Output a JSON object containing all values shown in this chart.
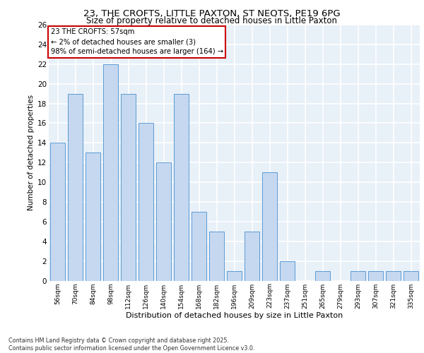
{
  "title_line1": "23, THE CROFTS, LITTLE PAXTON, ST NEOTS, PE19 6PG",
  "title_line2": "Size of property relative to detached houses in Little Paxton",
  "xlabel": "Distribution of detached houses by size in Little Paxton",
  "ylabel": "Number of detached properties",
  "categories": [
    "56sqm",
    "70sqm",
    "84sqm",
    "98sqm",
    "112sqm",
    "126sqm",
    "140sqm",
    "154sqm",
    "168sqm",
    "182sqm",
    "196sqm",
    "209sqm",
    "223sqm",
    "237sqm",
    "251sqm",
    "265sqm",
    "279sqm",
    "293sqm",
    "307sqm",
    "321sqm",
    "335sqm"
  ],
  "values": [
    14,
    19,
    13,
    22,
    19,
    16,
    12,
    19,
    7,
    5,
    1,
    5,
    11,
    2,
    0,
    1,
    0,
    1,
    1,
    1,
    1
  ],
  "bar_color": "#c5d8f0",
  "bar_edge_color": "#5b9bd5",
  "annotation_box_text": "23 THE CROFTS: 57sqm\n← 2% of detached houses are smaller (3)\n98% of semi-detached houses are larger (164) →",
  "annotation_box_color": "#ffffff",
  "annotation_box_edge_color": "#cc0000",
  "ylim": [
    0,
    26
  ],
  "yticks": [
    0,
    2,
    4,
    6,
    8,
    10,
    12,
    14,
    16,
    18,
    20,
    22,
    24,
    26
  ],
  "background_color": "#e8f0f8",
  "grid_color": "#ffffff",
  "footer_line1": "Contains HM Land Registry data © Crown copyright and database right 2025.",
  "footer_line2": "Contains public sector information licensed under the Open Government Licence v3.0."
}
